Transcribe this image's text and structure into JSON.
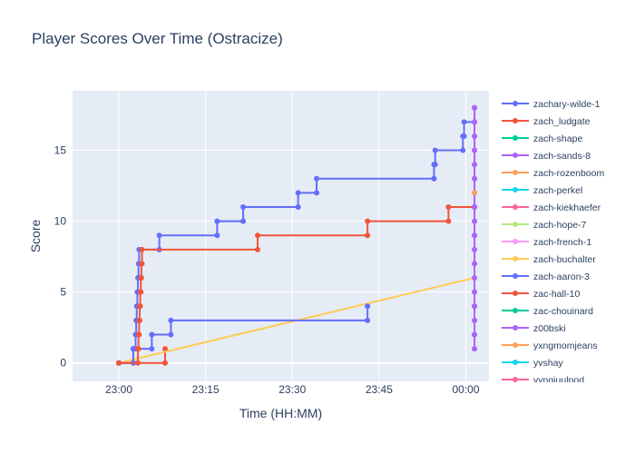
{
  "title": "Player Scores Over Time (Ostracize)",
  "chart_data": {
    "type": "line",
    "line_shape": "step",
    "title": "Player Scores Over Time (Ostracize)",
    "xlabel": "Time (HH:MM)",
    "ylabel": "Score",
    "x_tick_labels": [
      "23:00",
      "23:15",
      "23:30",
      "23:45",
      "00:00"
    ],
    "y_tick_labels": [
      "0",
      "5",
      "10",
      "15"
    ],
    "x_range_minutes": [
      -8,
      64
    ],
    "y_range": [
      -1.3,
      19.2
    ],
    "grid": true,
    "legend_position": "right",
    "series": [
      {
        "name": "zachary-wilde-1",
        "color": "#636efa",
        "points": [
          [
            0,
            0
          ],
          [
            2.5,
            0
          ],
          [
            2.5,
            1
          ],
          [
            2.9,
            1
          ],
          [
            2.9,
            2
          ],
          [
            3.0,
            2
          ],
          [
            3.0,
            3
          ],
          [
            3.1,
            3
          ],
          [
            3.1,
            4
          ],
          [
            3.2,
            4
          ],
          [
            3.2,
            5
          ],
          [
            3.3,
            5
          ],
          [
            3.3,
            6
          ],
          [
            3.4,
            6
          ],
          [
            3.4,
            7
          ],
          [
            3.5,
            7
          ],
          [
            3.5,
            8
          ],
          [
            7,
            8
          ],
          [
            7,
            9
          ],
          [
            17,
            9
          ],
          [
            17,
            10
          ],
          [
            21.5,
            10
          ],
          [
            21.5,
            11
          ],
          [
            31,
            11
          ],
          [
            31,
            12
          ],
          [
            34.2,
            12
          ],
          [
            34.2,
            13
          ],
          [
            54.5,
            13
          ],
          [
            54.5,
            14
          ],
          [
            54.7,
            14
          ],
          [
            54.7,
            15
          ],
          [
            59.5,
            15
          ],
          [
            59.5,
            16
          ],
          [
            59.7,
            16
          ],
          [
            59.7,
            17
          ],
          [
            61.5,
            17
          ],
          [
            61.5,
            18
          ]
        ]
      },
      {
        "name": "zach_ludgate",
        "color": "#ef553b",
        "points": [
          [
            0,
            0
          ],
          [
            8,
            0
          ],
          [
            8,
            1
          ]
        ]
      },
      {
        "name": "zach-shape",
        "color": "#00cc96",
        "points": [
          [
            61.5,
            4
          ]
        ]
      },
      {
        "name": "zach-sands-8",
        "color": "#ab63fa",
        "points": [
          [
            61.5,
            9
          ]
        ]
      },
      {
        "name": "zach-rozenboom",
        "color": "#ffa15a",
        "points": [
          [
            61.5,
            15
          ]
        ]
      },
      {
        "name": "zach-perkel",
        "color": "#19d3f3",
        "points": [
          [
            61.5,
            2
          ]
        ]
      },
      {
        "name": "zach-kiekhaefer",
        "color": "#ff6692",
        "points": [
          [
            61.5,
            11
          ]
        ]
      },
      {
        "name": "zach-hope-7",
        "color": "#b6e880",
        "points": [
          [
            61.5,
            16
          ]
        ]
      },
      {
        "name": "zach-french-1",
        "color": "#ff97ff",
        "points": [
          [
            61.5,
            7
          ],
          [
            61.5,
            17
          ]
        ]
      },
      {
        "name": "zach-buchalter",
        "color": "#fecb52",
        "points": [
          [
            0,
            0
          ],
          [
            61.5,
            6
          ]
        ]
      },
      {
        "name": "zach-aaron-3",
        "color": "#636efa",
        "points": [
          [
            0,
            0
          ],
          [
            2.5,
            0
          ],
          [
            2.5,
            1
          ],
          [
            5.7,
            1
          ],
          [
            5.7,
            2
          ],
          [
            9,
            2
          ],
          [
            9,
            3
          ],
          [
            43,
            3
          ],
          [
            43,
            4
          ]
        ]
      },
      {
        "name": "zac-hall-10",
        "color": "#ef553b",
        "points": [
          [
            0,
            0
          ],
          [
            3.3,
            0
          ],
          [
            3.3,
            1
          ],
          [
            3.4,
            1
          ],
          [
            3.4,
            2
          ],
          [
            3.5,
            2
          ],
          [
            3.5,
            3
          ],
          [
            3.6,
            3
          ],
          [
            3.6,
            4
          ],
          [
            3.7,
            4
          ],
          [
            3.7,
            5
          ],
          [
            3.8,
            5
          ],
          [
            3.8,
            6
          ],
          [
            3.9,
            6
          ],
          [
            3.9,
            7
          ],
          [
            4.0,
            7
          ],
          [
            4.0,
            8
          ],
          [
            24,
            8
          ],
          [
            24,
            9
          ],
          [
            43,
            9
          ],
          [
            43,
            10
          ],
          [
            57,
            10
          ],
          [
            57,
            11
          ],
          [
            61.5,
            11
          ]
        ]
      },
      {
        "name": "zac-chouinard",
        "color": "#00cc96",
        "points": []
      },
      {
        "name": "z00bski",
        "color": "#ab63fa",
        "points": [
          [
            61.5,
            1
          ],
          [
            61.5,
            2
          ],
          [
            61.5,
            3
          ],
          [
            61.5,
            4
          ],
          [
            61.5,
            5
          ],
          [
            61.5,
            6
          ],
          [
            61.5,
            7
          ],
          [
            61.5,
            8
          ],
          [
            61.5,
            9
          ],
          [
            61.5,
            10
          ],
          [
            61.5,
            11
          ],
          [
            61.5,
            12
          ],
          [
            61.5,
            13
          ],
          [
            61.5,
            14
          ],
          [
            61.5,
            15
          ],
          [
            61.5,
            16
          ],
          [
            61.5,
            17
          ],
          [
            61.5,
            18
          ]
        ]
      },
      {
        "name": "yxngmomjeans",
        "color": "#ffa15a",
        "points": [
          [
            61.5,
            12
          ]
        ]
      },
      {
        "name": "yvshay",
        "color": "#19d3f3",
        "points": []
      },
      {
        "name": "yyngjuulpod",
        "color": "#ff6692",
        "points": []
      }
    ]
  }
}
